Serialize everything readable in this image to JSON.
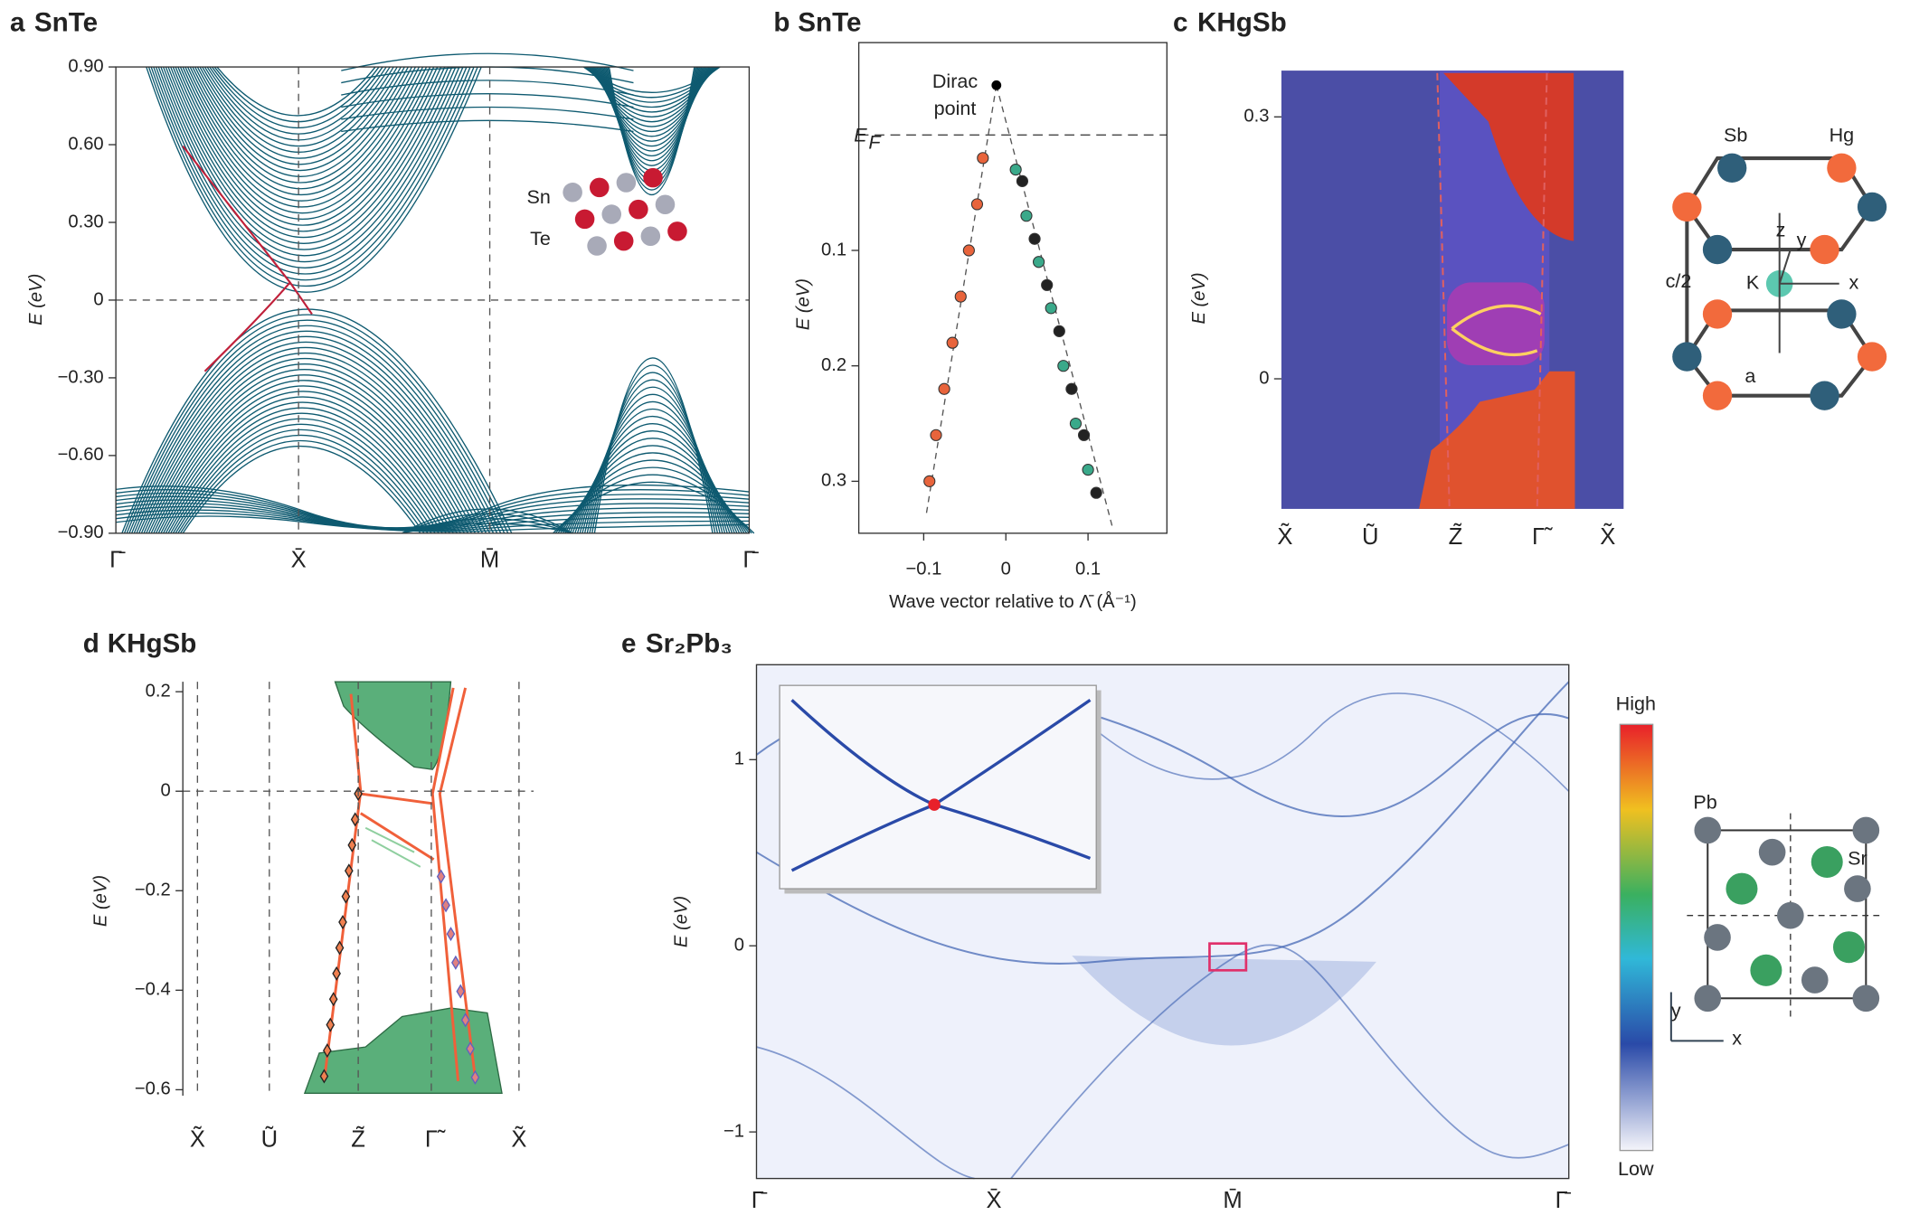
{
  "chart_data": [
    {
      "type": "band",
      "label": "a",
      "title": "SnTe",
      "ylabel": "E (eV)",
      "ylim": [
        -0.9,
        0.9
      ],
      "yticks": [
        {
          "value": 0.9,
          "label": "0.90"
        },
        {
          "value": 0.6,
          "label": "0.60"
        },
        {
          "value": 0.3,
          "label": "0.30"
        },
        0,
        {
          "value": -0.3,
          "label": "−0.30"
        },
        {
          "value": -0.6,
          "label": "−0.60"
        },
        {
          "value": -0.9,
          "label": "−0.90"
        }
      ],
      "categories": [
        "Γ̄",
        "X̄",
        "M̄",
        "Γ̄"
      ],
      "annotations": [
        "Sn",
        "Te"
      ]
    },
    {
      "type": "scatter",
      "label": "b",
      "title": "SnTe",
      "ylabel": "E (eV)",
      "xlabel": "Wave vector relative to Λ̄ (Å⁻¹)",
      "xlim": [
        -0.179,
        0.196
      ],
      "xticks": [
        {
          "value": -0.1,
          "label": "−0.1"
        },
        0,
        0.1
      ],
      "ylim": [
        -0.08,
        0.345
      ],
      "y_inverted": true,
      "yticks": [
        0.1,
        0.2,
        0.3
      ],
      "annotations": [
        "Dirac",
        "point",
        "E",
        "F"
      ],
      "series": [
        {
          "color": "#e8643c",
          "x": [
            -0.028,
            -0.035,
            -0.045,
            -0.055,
            -0.065,
            -0.075,
            -0.085,
            -0.093
          ],
          "values": [
            0.02,
            0.06,
            0.1,
            0.14,
            0.18,
            0.22,
            0.26,
            0.3
          ]
        },
        {
          "color": "#3aa98a",
          "x": [
            0.012,
            0.025,
            0.04,
            0.055,
            0.07,
            0.085,
            0.1
          ],
          "values": [
            0.03,
            0.07,
            0.11,
            0.15,
            0.2,
            0.25,
            0.29
          ]
        },
        {
          "color": "#222222",
          "x": [
            0.02,
            0.035,
            0.05,
            0.065,
            0.08,
            0.095,
            0.11
          ],
          "values": [
            0.04,
            0.09,
            0.13,
            0.17,
            0.22,
            0.26,
            0.31
          ]
        }
      ]
    },
    {
      "type": "band",
      "label": "c",
      "title": "KHgSb",
      "ylabel": "E (eV)",
      "ylim": [
        -0.149,
        0.353
      ],
      "yticks": [
        0,
        0.3
      ],
      "categories": [
        "X̃",
        "Ũ",
        "Z̃",
        "Γ̃",
        "X̃"
      ],
      "annotations": [
        "Sb",
        "Hg",
        "z",
        "y",
        "K",
        "x",
        "c/2",
        "a"
      ]
    },
    {
      "type": "band",
      "label": "d",
      "title": "KHgSb",
      "ylabel": "E (eV)",
      "ylim": [
        -0.612,
        0.22
      ],
      "yticks": [
        0.2,
        0,
        {
          "value": -0.2,
          "label": "−0.2"
        },
        {
          "value": -0.4,
          "label": "−0.4"
        },
        {
          "value": -0.6,
          "label": "−0.6"
        }
      ],
      "categories": [
        "X̃",
        "Ũ",
        "Z̃",
        "Γ̃",
        "X̃"
      ]
    },
    {
      "type": "band",
      "label": "e",
      "title": "Sr₂Pb₃",
      "ylabel": "E (eV)",
      "ylim": [
        -1.25,
        1.51
      ],
      "yticks": [
        1,
        0,
        {
          "value": -1,
          "label": "−1"
        }
      ],
      "categories": [
        "Γ̄",
        "X̄",
        "M̄",
        "Γ̄"
      ],
      "annotations": [
        "High",
        "Low",
        "Pb",
        "Sr",
        "y",
        "x"
      ]
    }
  ]
}
